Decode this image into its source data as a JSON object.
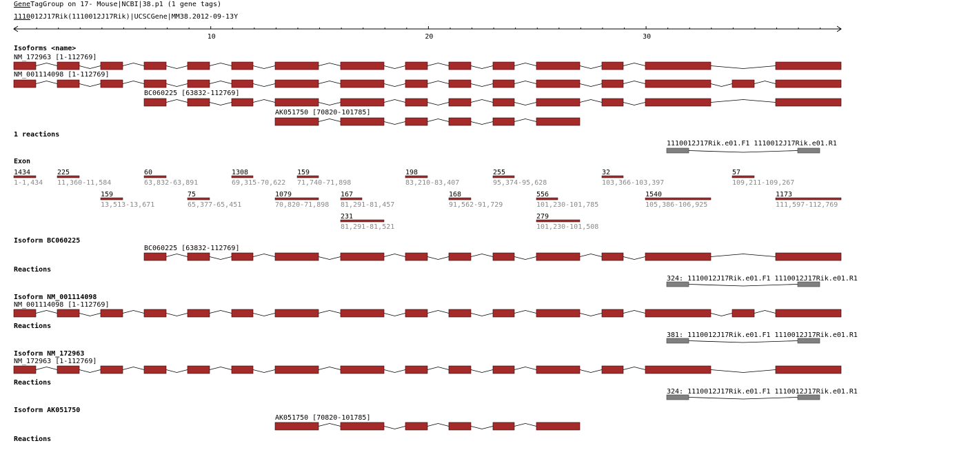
{
  "header": {
    "line1_prefix": "Gene",
    "line1_rest": "TagGroup on 17- Mouse|NCBI|38.p1 (1 gene tags)",
    "line2_prefix": "1110",
    "line2_rest": "012J17Rik(1110012J17Rik)|UCSCGene|MM38.2012-09-13",
    "line2_suffix": "Y"
  },
  "ruler": {
    "ticks": [
      "10",
      "20",
      "30"
    ]
  },
  "overview": {
    "section_title": "Isoforms <name>",
    "isoforms": [
      {
        "label": "NM_172963 [1-112769]",
        "exons": [
          0,
          1,
          2,
          3,
          4,
          5,
          6,
          7,
          8,
          9,
          10,
          11,
          12,
          13,
          15
        ]
      },
      {
        "label": "NM_001114098 [1-112769]",
        "exons": [
          0,
          1,
          2,
          3,
          4,
          5,
          6,
          7,
          8,
          9,
          10,
          11,
          12,
          13,
          14,
          15
        ]
      },
      {
        "label": "BC060225 [63832-112769]",
        "exons": [
          3,
          4,
          5,
          6,
          7,
          8,
          9,
          10,
          11,
          12,
          13,
          15
        ]
      },
      {
        "label": "AK051750 [70820-101785]",
        "exons": [
          6,
          7,
          8,
          9,
          10,
          11
        ]
      }
    ]
  },
  "reactions_section": {
    "title": "1 reactions",
    "primer_label": "1110012J17Rik.e01.F1 1110012J17Rik.e01.R1"
  },
  "exon_section": {
    "title": "Exon",
    "exons": [
      {
        "len": "1434",
        "range": "1-1,434"
      },
      {
        "len": "225",
        "range": "11,360-11,584"
      },
      {
        "len": "159",
        "range": "13,513-13,671"
      },
      {
        "len": "60",
        "range": "63,832-63,891"
      },
      {
        "len": "75",
        "range": "65,377-65,451"
      },
      {
        "len": "1308",
        "range": "69,315-70,622"
      },
      {
        "len": "1079",
        "range": "70,820-71,898"
      },
      {
        "len": "159",
        "range": "71,740-71,898"
      },
      {
        "len": "167",
        "range": "81,291-81,457"
      },
      {
        "len": "231",
        "range": "81,291-81,521"
      },
      {
        "len": "198",
        "range": "83,210-83,407"
      },
      {
        "len": "168",
        "range": "91,562-91,729"
      },
      {
        "len": "255",
        "range": "95,374-95,628"
      },
      {
        "len": "556",
        "range": "101,230-101,785"
      },
      {
        "len": "279",
        "range": "101,230-101,508"
      },
      {
        "len": "32",
        "range": "103,366-103,397"
      },
      {
        "len": "1540",
        "range": "105,386-106,925"
      },
      {
        "len": "57",
        "range": "109,211-109,267"
      },
      {
        "len": "1173",
        "range": "111,597-112,769"
      }
    ]
  },
  "details": [
    {
      "title": "Isoform BC060225",
      "label": "BC060225 [63832-112769]",
      "exons": [
        3,
        4,
        5,
        6,
        7,
        8,
        9,
        10,
        11,
        12,
        13,
        15
      ],
      "reactions_title": "Reactions",
      "reaction_label": "324: 1110012J17Rik.e01.F1 1110012J17Rik.e01.R1"
    },
    {
      "title": "Isoform NM_001114098",
      "label": "NM_001114098 [1-112769]",
      "exons": [
        0,
        1,
        2,
        3,
        4,
        5,
        6,
        7,
        8,
        9,
        10,
        11,
        12,
        13,
        14,
        15
      ],
      "reactions_title": "Reactions",
      "reaction_label": "381: 1110012J17Rik.e01.F1 1110012J17Rik.e01.R1"
    },
    {
      "title": "Isoform NM_172963",
      "label": "NM_172963 [1-112769]",
      "exons": [
        0,
        1,
        2,
        3,
        4,
        5,
        6,
        7,
        8,
        9,
        10,
        11,
        12,
        13,
        15
      ],
      "reactions_title": "Reactions",
      "reaction_label": "324: 1110012J17Rik.e01.F1 1110012J17Rik.e01.R1"
    },
    {
      "title": "Isoform AK051750",
      "label": "AK051750 [70820-101785]",
      "exons": [
        6,
        7,
        8,
        9,
        10,
        11
      ],
      "reactions_title": "Reactions",
      "reaction_label": ""
    }
  ],
  "colors": {
    "exon": "#a52a2a",
    "primer": "#808080",
    "line": "#000000",
    "grey_text": "#888888"
  }
}
